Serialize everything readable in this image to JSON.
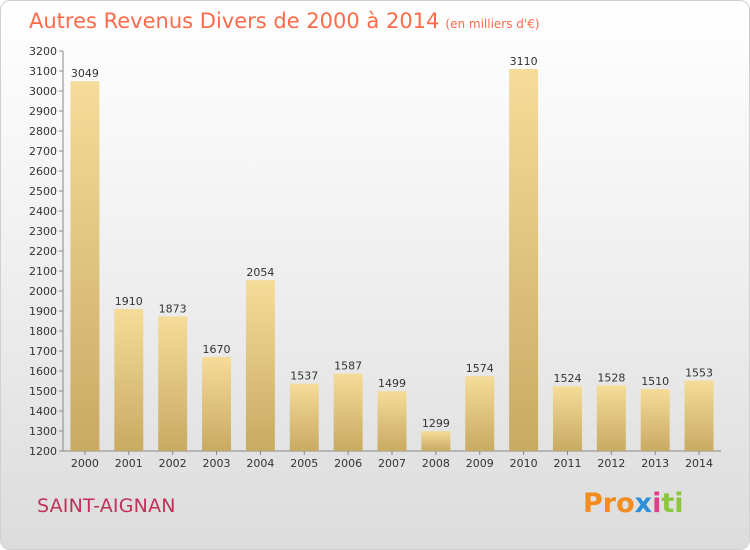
{
  "chart_data": {
    "type": "bar",
    "title": "Autres Revenus Divers de 2000 à 2014",
    "subtitle": "(en milliers d'€)",
    "categories": [
      "2000",
      "2001",
      "2002",
      "2003",
      "2004",
      "2005",
      "2006",
      "2007",
      "2008",
      "2009",
      "2010",
      "2011",
      "2012",
      "2013",
      "2014"
    ],
    "values": [
      3049,
      1910,
      1873,
      1670,
      2054,
      1537,
      1587,
      1499,
      1299,
      1574,
      3110,
      1524,
      1528,
      1510,
      1553
    ],
    "ylim": [
      1200,
      3200
    ],
    "ytick_step": 100,
    "grid": false,
    "legend": "none",
    "colors": {
      "bar_light": "#f5dc98",
      "bar_dark": "#c8aa62",
      "axis": "#888888",
      "text": "#333333"
    }
  },
  "commune": "SAINT-AIGNAN",
  "logo": {
    "part1": "Pro",
    "part2": "x",
    "part3": "i",
    "part4": "ti"
  }
}
